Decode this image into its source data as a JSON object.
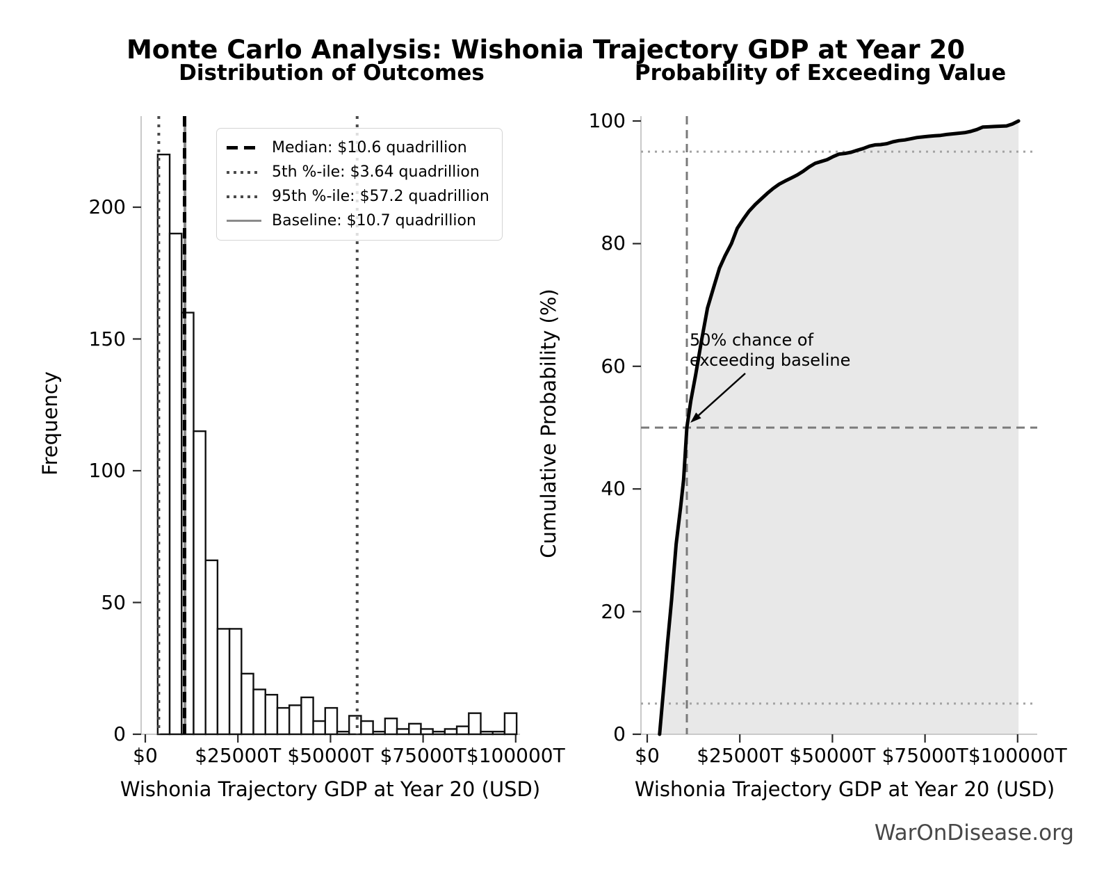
{
  "figure": {
    "title": "Monte Carlo Analysis: Wishonia Trajectory GDP at Year 20",
    "watermark": "WarOnDisease.org"
  },
  "chart_data": [
    {
      "type": "bar",
      "subtype": "histogram",
      "title": "Distribution of Outcomes",
      "xlabel": "Wishonia Trajectory GDP at Year 20 (USD)",
      "ylabel": "Frequency",
      "x_tick_values": [
        0,
        25000,
        50000,
        75000,
        100000
      ],
      "x_tick_labels": [
        "$0",
        "$25000T",
        "$50000T",
        "$75000T",
        "$100000T"
      ],
      "y_ticks": [
        0,
        50,
        100,
        150,
        200
      ],
      "ylim": [
        0,
        234
      ],
      "xlim": [
        -1100,
        102300
      ],
      "grid": false,
      "bar_fill": "#ffffff",
      "bar_edge": "#111111",
      "bins": {
        "start_trillions": 3350,
        "width_trillions": 3230,
        "counts": [
          220,
          190,
          160,
          115,
          66,
          40,
          40,
          23,
          17,
          15,
          10,
          11,
          14,
          5,
          10,
          1,
          7,
          5,
          1,
          6,
          2,
          4,
          2,
          1,
          2,
          3,
          8,
          1,
          1,
          8
        ]
      },
      "ref_lines": [
        {
          "id": "p5",
          "value_trillions": 3640,
          "style": "dotted",
          "color": "#4a4a4a",
          "width": 4
        },
        {
          "id": "baseline",
          "value_trillions": 10700,
          "style": "solid",
          "color": "#8a8a8a",
          "width": 4
        },
        {
          "id": "p95",
          "value_trillions": 57200,
          "style": "dotted",
          "color": "#4a4a4a",
          "width": 4
        },
        {
          "id": "median",
          "value_trillions": 10600,
          "style": "dashed",
          "color": "#000000",
          "width": 5
        }
      ],
      "legend": {
        "position": "upper right",
        "entries": [
          {
            "id": "median",
            "label": "Median: $10.6 quadrillion",
            "style": "dashed"
          },
          {
            "id": "p5",
            "label": "5th %-ile: $3.64 quadrillion",
            "style": "dotted"
          },
          {
            "id": "p95",
            "label": "95th %-ile: $57.2 quadrillion",
            "style": "dotted"
          },
          {
            "id": "baseline",
            "label": "Baseline: $10.7 quadrillion",
            "style": "solid"
          }
        ]
      }
    },
    {
      "type": "line",
      "subtype": "cdf",
      "title": "Probability of Exceeding Value",
      "xlabel": "Wishonia Trajectory GDP at Year 20 (USD)",
      "ylabel": "Cumulative Probability (%)",
      "x_tick_values": [
        0,
        25000,
        50000,
        75000,
        100000
      ],
      "x_tick_labels": [
        "$0",
        "$25000T",
        "$50000T",
        "$75000T",
        "$100000T"
      ],
      "y_ticks": [
        0,
        20,
        40,
        60,
        80,
        100
      ],
      "ylim": [
        0,
        100.8
      ],
      "xlim": [
        -1100,
        102300
      ],
      "line_color": "#000000",
      "fill": true,
      "fill_color": "#e8e8e8",
      "points": [
        [
          3350,
          0
        ],
        [
          4500,
          8
        ],
        [
          5500,
          15
        ],
        [
          6580,
          22
        ],
        [
          7800,
          31
        ],
        [
          9000,
          37
        ],
        [
          9810,
          41.5
        ],
        [
          10700,
          50
        ],
        [
          11800,
          54.5
        ],
        [
          13040,
          58.5
        ],
        [
          14600,
          64
        ],
        [
          16270,
          69.5
        ],
        [
          18000,
          73
        ],
        [
          19500,
          76
        ],
        [
          21000,
          78
        ],
        [
          22730,
          80
        ],
        [
          24300,
          82.5
        ],
        [
          25960,
          84
        ],
        [
          27500,
          85.3
        ],
        [
          29190,
          86.4
        ],
        [
          30800,
          87.3
        ],
        [
          32420,
          88.2
        ],
        [
          34000,
          89
        ],
        [
          35650,
          89.7
        ],
        [
          37200,
          90.2
        ],
        [
          38880,
          90.7
        ],
        [
          40500,
          91.2
        ],
        [
          42110,
          91.8
        ],
        [
          43700,
          92.5
        ],
        [
          45340,
          93.1
        ],
        [
          47000,
          93.4
        ],
        [
          48570,
          93.7
        ],
        [
          50200,
          94.2
        ],
        [
          51800,
          94.6
        ],
        [
          53400,
          94.7
        ],
        [
          55030,
          94.9
        ],
        [
          56600,
          95.2
        ],
        [
          58260,
          95.5
        ],
        [
          60000,
          95.9
        ],
        [
          61490,
          96.1
        ],
        [
          63000,
          96.15
        ],
        [
          64720,
          96.3
        ],
        [
          66300,
          96.6
        ],
        [
          67950,
          96.8
        ],
        [
          69500,
          96.9
        ],
        [
          71180,
          97.1
        ],
        [
          72800,
          97.3
        ],
        [
          74410,
          97.4
        ],
        [
          76000,
          97.5
        ],
        [
          77640,
          97.6
        ],
        [
          79200,
          97.65
        ],
        [
          80870,
          97.8
        ],
        [
          82500,
          97.9
        ],
        [
          84100,
          98
        ],
        [
          85700,
          98.1
        ],
        [
          87330,
          98.3
        ],
        [
          89000,
          98.6
        ],
        [
          90560,
          99
        ],
        [
          92100,
          99.05
        ],
        [
          93790,
          99.1
        ],
        [
          95400,
          99.15
        ],
        [
          97020,
          99.2
        ],
        [
          98600,
          99.5
        ],
        [
          100250,
          100
        ]
      ],
      "ref_lines": [
        {
          "axis": "x",
          "value": 10700,
          "style": "dashed",
          "color": "#7a7a7a",
          "width": 3
        },
        {
          "axis": "y",
          "value": 50,
          "style": "dashed",
          "color": "#7a7a7a",
          "width": 3
        },
        {
          "axis": "y",
          "value": 5,
          "style": "dotted",
          "color": "#a3a3a3",
          "width": 3
        },
        {
          "axis": "y",
          "value": 95,
          "style": "dotted",
          "color": "#a3a3a3",
          "width": 3
        }
      ],
      "annotation": {
        "text": "50% chance of\nexceeding baseline",
        "arrow_points_to": {
          "x_trillions": 10700,
          "y_percent": 50
        }
      }
    }
  ]
}
